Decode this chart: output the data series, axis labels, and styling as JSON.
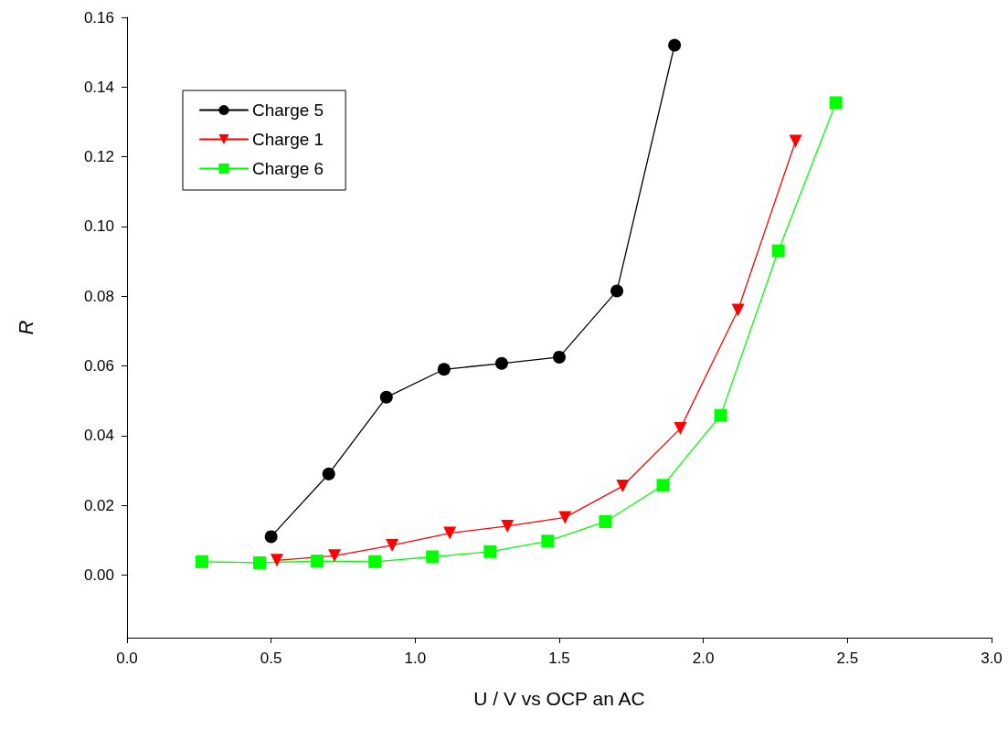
{
  "chart_data": {
    "type": "line",
    "xlabel": "U / V vs OCP an AC",
    "ylabel": "R",
    "xlim": [
      0,
      3
    ],
    "ylim": [
      -0.018,
      0.16
    ],
    "xticks": [
      {
        "value": 0,
        "label": "0.0"
      },
      {
        "value": 0.5,
        "label": "0.5"
      },
      {
        "value": 1,
        "label": "1.0"
      },
      {
        "value": 1.5,
        "label": "1.5"
      },
      {
        "value": 2,
        "label": "2.0"
      },
      {
        "value": 2.5,
        "label": "2.5"
      },
      {
        "value": 3,
        "label": "3.0"
      }
    ],
    "yticks": [
      {
        "value": 0,
        "label": "0.00"
      },
      {
        "value": 0.02,
        "label": "0.02"
      },
      {
        "value": 0.04,
        "label": "0.04"
      },
      {
        "value": 0.06,
        "label": "0.06"
      },
      {
        "value": 0.08,
        "label": "0.08"
      },
      {
        "value": 0.1,
        "label": "0.10"
      },
      {
        "value": 0.12,
        "label": "0.12"
      },
      {
        "value": 0.14,
        "label": "0.14"
      },
      {
        "value": 0.16,
        "label": "0.16"
      }
    ],
    "grid": false,
    "legend": "top left",
    "line_style": "solid",
    "series": [
      {
        "name": "Charge 5",
        "color": "#000000",
        "marker": "circle",
        "x": [
          0.5,
          0.7,
          0.9,
          1.1,
          1.3,
          1.5,
          1.7,
          1.9
        ],
        "values": [
          0.011,
          0.029,
          0.051,
          0.059,
          0.0607,
          0.0625,
          0.0815,
          0.152
        ]
      },
      {
        "name": "Charge 1",
        "color": "#ff0000",
        "marker": "triangle",
        "x": [
          0.52,
          0.72,
          0.92,
          1.12,
          1.32,
          1.52,
          1.72,
          1.92,
          2.12,
          2.32
        ],
        "values": [
          0.0042,
          0.0055,
          0.0085,
          0.012,
          0.014,
          0.0165,
          0.0255,
          0.042,
          0.076,
          0.1245
        ]
      },
      {
        "name": "Charge 6",
        "color": "#00ff00",
        "marker": "square",
        "x": [
          0.26,
          0.46,
          0.66,
          0.86,
          1.06,
          1.26,
          1.46,
          1.66,
          1.86,
          2.06,
          2.26,
          2.46
        ],
        "values": [
          0.0038,
          0.0035,
          0.004,
          0.0038,
          0.0052,
          0.0067,
          0.0097,
          0.0153,
          0.0257,
          0.0458,
          0.093,
          0.1355
        ]
      }
    ]
  }
}
